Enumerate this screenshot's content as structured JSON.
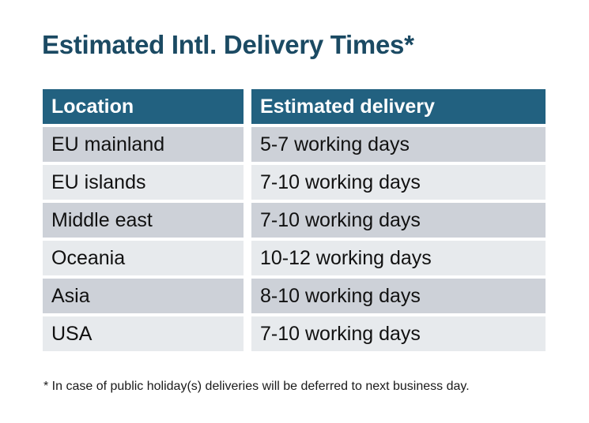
{
  "title": "Estimated Intl. Delivery Times*",
  "table": {
    "headers": [
      "Location",
      "Estimated delivery"
    ],
    "rows": [
      {
        "location": "EU mainland",
        "delivery": "5-7 working days"
      },
      {
        "location": "EU islands",
        "delivery": "7-10 working days"
      },
      {
        "location": "Middle east",
        "delivery": "7-10 working days"
      },
      {
        "location": "Oceania",
        "delivery": "10-12 working days"
      },
      {
        "location": "Asia",
        "delivery": "8-10 working days"
      },
      {
        "location": "USA",
        "delivery": "7-10 working days"
      }
    ]
  },
  "footnote": "* In case of public holiday(s) deliveries will be deferred to next business day.",
  "colors": {
    "title_text": "#1B4A63",
    "header_background": "#226180",
    "header_text": "#ffffff",
    "row_dark": "#CDD1D8",
    "row_light": "#E7EAED",
    "body_text": "#111111",
    "page_background": "#ffffff"
  }
}
